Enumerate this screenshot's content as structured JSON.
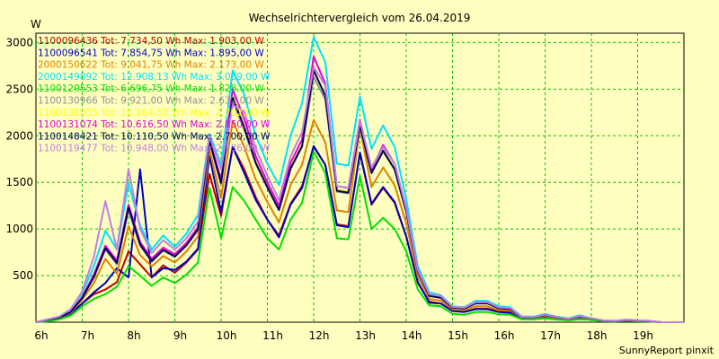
{
  "chart_data": {
    "type": "line",
    "title": "Wechselrichtervergleich vom 26.04.2019",
    "ylabel": "W",
    "xlabel": "",
    "x_ticks": [
      "6h",
      "7h",
      "8h",
      "9h",
      "10h",
      "11h",
      "12h",
      "13h",
      "14h",
      "15h",
      "16h",
      "17h",
      "18h",
      "19h"
    ],
    "y_ticks": [
      500,
      1000,
      1500,
      2000,
      2500,
      3000
    ],
    "xlim": [
      "06:00",
      "20:00"
    ],
    "ylim": [
      0,
      3100
    ],
    "grid": true,
    "legend_position": "top-left",
    "x": [
      "06:00",
      "06:15",
      "06:30",
      "06:45",
      "07:00",
      "07:15",
      "07:30",
      "07:45",
      "08:00",
      "08:15",
      "08:30",
      "08:45",
      "09:00",
      "09:15",
      "09:30",
      "09:45",
      "10:00",
      "10:15",
      "10:30",
      "10:45",
      "11:00",
      "11:15",
      "11:30",
      "11:45",
      "12:00",
      "12:15",
      "12:30",
      "12:45",
      "13:00",
      "13:15",
      "13:30",
      "13:45",
      "14:00",
      "14:15",
      "14:30",
      "14:45",
      "15:00",
      "15:15",
      "15:30",
      "15:45",
      "16:00",
      "16:15",
      "16:30",
      "16:45",
      "17:00",
      "17:15",
      "17:30",
      "17:45",
      "18:00",
      "18:15",
      "18:30",
      "18:45",
      "19:00",
      "19:15",
      "19:30",
      "19:45",
      "20:00"
    ],
    "series": [
      {
        "name": "1100096436 Tot: 7.734,50 Wh Max: 1.903,00 W",
        "color": "#c00000",
        "values": [
          0,
          20,
          40,
          90,
          200,
          300,
          350,
          430,
          760,
          620,
          480,
          610,
          530,
          640,
          780,
          1590,
          1140,
          1880,
          1640,
          1340,
          1100,
          930,
          1270,
          1460,
          1880,
          1690,
          1050,
          1030,
          1810,
          1260,
          1440,
          1280,
          920,
          420,
          220,
          200,
          120,
          110,
          145,
          145,
          115,
          110,
          40,
          40,
          55,
          35,
          25,
          45,
          30,
          15,
          10,
          20,
          15,
          10,
          0,
          0,
          0
        ]
      },
      {
        "name": "1100096541 Tot: 7.854,75 Wh Max: 1.895,00 W",
        "color": "#0000c0",
        "values": [
          0,
          20,
          40,
          90,
          200,
          320,
          420,
          580,
          480,
          1640,
          480,
          580,
          560,
          650,
          790,
          1780,
          1180,
          1880,
          1600,
          1310,
          1100,
          910,
          1260,
          1440,
          1890,
          1690,
          1040,
          1020,
          1820,
          1270,
          1450,
          1290,
          920,
          430,
          210,
          200,
          120,
          110,
          140,
          140,
          110,
          100,
          40,
          40,
          60,
          40,
          25,
          45,
          30,
          15,
          10,
          20,
          15,
          10,
          0,
          0,
          0
        ]
      },
      {
        "name": "2000150622 Tot: 9.041,75 Wh Max: 2.173,00 W",
        "color": "#e08000",
        "values": [
          0,
          25,
          50,
          100,
          240,
          420,
          680,
          520,
          1030,
          720,
          600,
          710,
          640,
          760,
          920,
          1850,
          1330,
          2160,
          1880,
          1530,
          1290,
          1070,
          1470,
          1690,
          2170,
          1930,
          1200,
          1180,
          2080,
          1450,
          1660,
          1470,
          1060,
          490,
          250,
          230,
          140,
          130,
          170,
          170,
          130,
          125,
          45,
          45,
          65,
          40,
          30,
          55,
          35,
          18,
          12,
          22,
          18,
          12,
          0,
          0,
          0
        ]
      },
      {
        "name": "2000149892 Tot: 12.908,13 Wh Max: 3.069,00 W",
        "color": "#00e0ff",
        "values": [
          0,
          30,
          60,
          140,
          310,
          600,
          980,
          780,
          1490,
          1040,
          780,
          930,
          810,
          950,
          1150,
          2020,
          1690,
          2700,
          2440,
          2000,
          1700,
          1470,
          2000,
          2350,
          3060,
          2790,
          1700,
          1680,
          2420,
          1860,
          2110,
          1880,
          1320,
          600,
          320,
          290,
          170,
          160,
          230,
          230,
          170,
          160,
          60,
          60,
          90,
          60,
          40,
          75,
          40,
          20,
          15,
          28,
          20,
          15,
          0,
          0,
          0
        ]
      },
      {
        "name": "1100129553 Tot: 6.696,75 Wh Max: 1.828,00 W",
        "color": "#00e000",
        "values": [
          0,
          10,
          30,
          70,
          170,
          250,
          300,
          380,
          600,
          500,
          390,
          480,
          420,
          510,
          640,
          1440,
          900,
          1450,
          1300,
          1100,
          900,
          780,
          1100,
          1280,
          1830,
          1600,
          900,
          890,
          1570,
          1000,
          1120,
          1000,
          760,
          350,
          180,
          170,
          90,
          80,
          110,
          110,
          85,
          80,
          30,
          30,
          40,
          28,
          20,
          30,
          25,
          10,
          8,
          15,
          10,
          8,
          0,
          0,
          0
        ]
      },
      {
        "name": "1100130966 Tot: 9.921,00 Wh Max: 2.632,00 W",
        "color": "#909090",
        "values": [
          0,
          25,
          50,
          110,
          260,
          480,
          780,
          620,
          1200,
          820,
          650,
          770,
          700,
          820,
          990,
          1930,
          1480,
          2380,
          2060,
          1700,
          1440,
          1200,
          1640,
          1880,
          2630,
          2390,
          1400,
          1380,
          2100,
          1600,
          1830,
          1640,
          1180,
          540,
          280,
          260,
          155,
          145,
          200,
          200,
          150,
          140,
          50,
          50,
          75,
          50,
          35,
          60,
          40,
          18,
          12,
          22,
          18,
          12,
          0,
          0,
          0
        ]
      },
      {
        "name": "1100131035 Tot: 10.164,50 Wh Max: 2.702,00 W",
        "color": "#ffff00",
        "values": [
          0,
          25,
          50,
          110,
          260,
          490,
          800,
          640,
          1240,
          840,
          660,
          780,
          710,
          830,
          1000,
          1950,
          1500,
          2420,
          2100,
          1720,
          1460,
          1210,
          1660,
          1900,
          2700,
          2440,
          1420,
          1400,
          2120,
          1610,
          1850,
          1650,
          1190,
          545,
          285,
          265,
          158,
          148,
          205,
          205,
          152,
          142,
          52,
          52,
          78,
          52,
          36,
          62,
          41,
          18,
          12,
          22,
          18,
          12,
          0,
          0,
          0
        ]
      },
      {
        "name": "1100131074 Tot: 10.616,50 Wh Max: 2.850,00 W",
        "color": "#e000e0",
        "values": [
          0,
          25,
          50,
          110,
          270,
          510,
          820,
          660,
          1260,
          860,
          680,
          800,
          730,
          850,
          1020,
          1960,
          1530,
          2500,
          2180,
          1780,
          1500,
          1250,
          1710,
          1960,
          2850,
          2560,
          1460,
          1440,
          2170,
          1640,
          1900,
          1700,
          1220,
          560,
          295,
          275,
          162,
          152,
          210,
          210,
          156,
          146,
          54,
          54,
          80,
          54,
          37,
          64,
          42,
          18,
          12,
          22,
          18,
          12,
          0,
          0,
          0
        ]
      },
      {
        "name": "1100148421 Tot: 10.110,50 Wh Max: 2.700,00 W",
        "color": "#000060",
        "values": [
          0,
          25,
          50,
          110,
          260,
          485,
          795,
          635,
          1230,
          835,
          655,
          775,
          705,
          825,
          995,
          1945,
          1495,
          2410,
          2090,
          1710,
          1450,
          1205,
          1650,
          1890,
          2700,
          2430,
          1410,
          1390,
          2110,
          1600,
          1840,
          1640,
          1185,
          545,
          283,
          262,
          156,
          146,
          202,
          202,
          150,
          140,
          51,
          51,
          76,
          51,
          35,
          61,
          40,
          18,
          12,
          22,
          18,
          12,
          0,
          0,
          0
        ]
      },
      {
        "name": "1100119477 Tot: 10.948,00 Wh Max: 2.736,00 W",
        "color": "#c080e0",
        "values": [
          0,
          30,
          60,
          140,
          330,
          700,
          1300,
          780,
          1640,
          1000,
          740,
          880,
          780,
          900,
          1080,
          2000,
          1640,
          2330,
          2260,
          1860,
          1570,
          1310,
          1780,
          2040,
          2736,
          2540,
          1460,
          1440,
          2160,
          1660,
          1880,
          1700,
          1220,
          560,
          300,
          280,
          165,
          155,
          215,
          215,
          160,
          150,
          55,
          55,
          82,
          55,
          38,
          66,
          43,
          20,
          14,
          24,
          20,
          14,
          0,
          0,
          0
        ]
      }
    ]
  },
  "footer": {
    "text": "SunnyReport pinxit"
  }
}
